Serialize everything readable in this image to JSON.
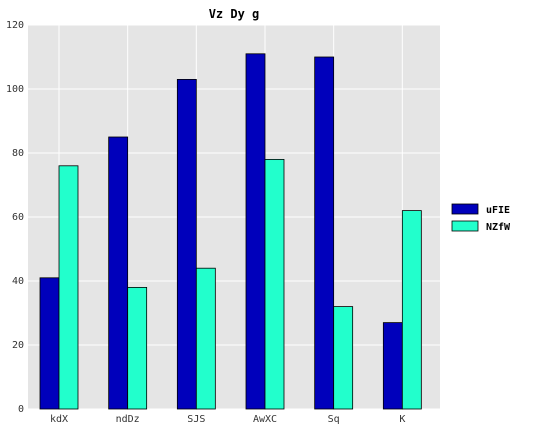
{
  "chart_data": {
    "type": "bar",
    "title": "Vz Dy g",
    "xlabel": "",
    "ylabel": "",
    "categories": [
      "kdX",
      "ndDz",
      "SJS",
      "AwXC",
      "Sq",
      "K"
    ],
    "series": [
      {
        "name": "uFIE",
        "color": "#0000bb",
        "values": [
          41,
          85,
          103,
          111,
          110,
          27
        ]
      },
      {
        "name": "NZfW",
        "color": "#22ffcc",
        "values": [
          76,
          38,
          44,
          78,
          32,
          62
        ]
      }
    ],
    "ylim": [
      0,
      120
    ],
    "yticks": [
      0,
      20,
      40,
      60,
      80,
      100,
      120
    ],
    "grid": true,
    "legend_position": "right"
  }
}
